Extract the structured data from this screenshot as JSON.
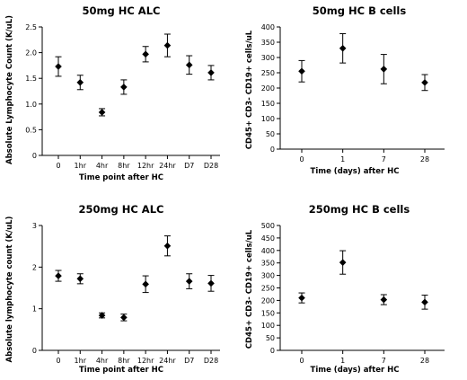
{
  "chart_data": [
    {
      "type": "scatter",
      "title": "50mg HC ALC",
      "xlabel": "Time point after HC",
      "ylabel": "Absolute Lymphocyte Count (K/uL)",
      "categories": [
        "0",
        "1hr",
        "4hr",
        "8hr",
        "12hr",
        "24hr",
        "D7",
        "D28"
      ],
      "ylim": [
        0,
        2.5
      ],
      "yticks": [
        "0",
        "0.5",
        "1.0",
        "1.5",
        "2.0",
        "2.5"
      ],
      "values": [
        1.73,
        1.42,
        0.84,
        1.33,
        1.97,
        2.14,
        1.76,
        1.61
      ],
      "err": [
        0.19,
        0.14,
        0.07,
        0.14,
        0.15,
        0.22,
        0.18,
        0.14
      ],
      "marker_color": "#000000"
    },
    {
      "type": "scatter",
      "title": "50mg HC B cells",
      "xlabel": "Time (days) after HC",
      "ylabel": "CD45+ CD3- CD19+ cells/uL",
      "categories": [
        "0",
        "1",
        "7",
        "28"
      ],
      "ylim": [
        0,
        400
      ],
      "yticks": [
        "0",
        "50",
        "100",
        "150",
        "200",
        "250",
        "300",
        "350",
        "400"
      ],
      "values": [
        255,
        330,
        262,
        218
      ],
      "err": [
        35,
        48,
        48,
        26
      ],
      "marker_color": "#000000"
    },
    {
      "type": "scatter",
      "title": "250mg HC ALC",
      "xlabel": "Time point after HC",
      "ylabel": "Absolute lymphocyte count (K/uL)",
      "categories": [
        "0",
        "1hr",
        "4hr",
        "8hr",
        "12hr",
        "24hr",
        "D7",
        "D28"
      ],
      "ylim": [
        0,
        3
      ],
      "yticks": [
        "0",
        "1",
        "2",
        "3"
      ],
      "values": [
        1.79,
        1.72,
        0.84,
        0.79,
        1.59,
        2.51,
        1.66,
        1.61
      ],
      "err": [
        0.13,
        0.12,
        0.06,
        0.08,
        0.2,
        0.24,
        0.18,
        0.19
      ],
      "marker_color": "#000000"
    },
    {
      "type": "scatter",
      "title": "250mg HC B cells",
      "xlabel": "Time (days) after HC",
      "ylabel": "CD45+ CD3- CD19+ cells/uL",
      "categories": [
        "0",
        "1",
        "7",
        "28"
      ],
      "ylim": [
        0,
        500
      ],
      "yticks": [
        "0",
        "50",
        "100",
        "150",
        "200",
        "250",
        "300",
        "350",
        "400",
        "450",
        "500"
      ],
      "values": [
        210,
        352,
        203,
        193
      ],
      "err": [
        20,
        47,
        20,
        28
      ],
      "marker_color": "#000000"
    }
  ]
}
